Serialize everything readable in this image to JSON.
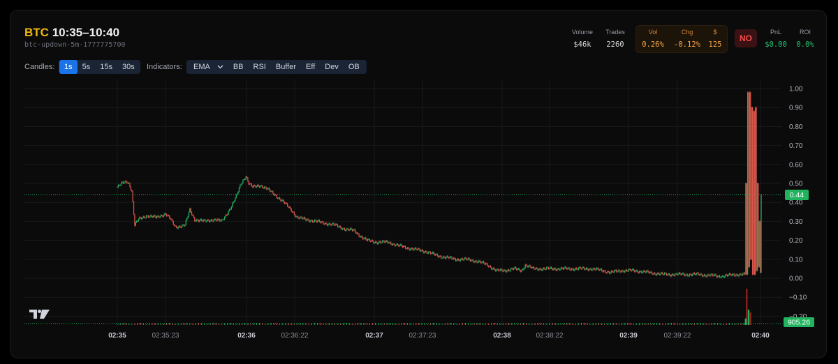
{
  "header": {
    "symbol": "BTC",
    "time_range": "10:35–10:40",
    "market_id": "btc-updown-5m-1777775700"
  },
  "stats": {
    "volume_label": "Volume",
    "volume_value": "$46k",
    "trades_label": "Trades",
    "trades_value": "2260",
    "vol_label": "Vol",
    "vol_value": "0.26%",
    "chg_label": "Chg",
    "chg_value": "-0.12%",
    "usd_label": "$",
    "usd_value": "125",
    "outcome_badge": "NO",
    "pnl_label": "PnL",
    "pnl_value": "$0.00",
    "roi_label": "ROI",
    "roi_value": "0.0%"
  },
  "toolbar": {
    "candles_label": "Candles:",
    "candle_intervals": [
      "1s",
      "5s",
      "15s",
      "30s"
    ],
    "active_interval": "1s",
    "indicators_label": "Indicators:",
    "ema_select": "EMA",
    "indicator_buttons": [
      "BB",
      "RSI",
      "Buffer",
      "Eff",
      "Dev",
      "OB"
    ]
  },
  "colors": {
    "up": "#22b35e",
    "down": "#e5534b",
    "accent": "#1a73e8",
    "symbol": "#f0b90b"
  },
  "icons": {
    "logo": "tradingview-logo-icon",
    "dropdown": "chevron-down-icon"
  },
  "chart_data": {
    "type": "candlestick",
    "y_ticks": [
      "1.00",
      "0.90",
      "0.80",
      "0.70",
      "0.60",
      "0.50",
      "0.40",
      "0.30",
      "0.20",
      "0.10",
      "0.00",
      "−0.10",
      "−0.20"
    ],
    "ylim": [
      -0.24,
      1.04
    ],
    "x_ticks": [
      "02:35",
      "02:35:23",
      "02:36",
      "02:36:22",
      "02:37",
      "02:37:23",
      "02:38",
      "02:38:22",
      "02:39",
      "02:39:22",
      "02:40"
    ],
    "x_ticks_bold": [
      "02:35",
      "02:36",
      "02:37",
      "02:38",
      "02:39",
      "02:40"
    ],
    "last_price_label": "0.44",
    "last_price": 0.44,
    "volume_label": "905.26",
    "price_path": [
      [
        0,
        0.48
      ],
      [
        5,
        0.5
      ],
      [
        10,
        0.51
      ],
      [
        12,
        0.5
      ],
      [
        15,
        0.46
      ],
      [
        18,
        0.28
      ],
      [
        22,
        0.31
      ],
      [
        30,
        0.33
      ],
      [
        40,
        0.32
      ],
      [
        50,
        0.34
      ],
      [
        55,
        0.31
      ],
      [
        60,
        0.27
      ],
      [
        70,
        0.28
      ],
      [
        75,
        0.36
      ],
      [
        80,
        0.31
      ],
      [
        90,
        0.3
      ],
      [
        100,
        0.31
      ],
      [
        108,
        0.3
      ],
      [
        112,
        0.33
      ],
      [
        118,
        0.38
      ],
      [
        123,
        0.43
      ],
      [
        128,
        0.5
      ],
      [
        133,
        0.54
      ],
      [
        136,
        0.5
      ],
      [
        140,
        0.48
      ],
      [
        148,
        0.49
      ],
      [
        155,
        0.47
      ],
      [
        163,
        0.44
      ],
      [
        170,
        0.41
      ],
      [
        176,
        0.38
      ],
      [
        180,
        0.36
      ],
      [
        186,
        0.32
      ],
      [
        195,
        0.31
      ],
      [
        205,
        0.3
      ],
      [
        215,
        0.29
      ],
      [
        225,
        0.28
      ],
      [
        235,
        0.26
      ],
      [
        245,
        0.25
      ],
      [
        252,
        0.22
      ],
      [
        258,
        0.2
      ],
      [
        268,
        0.19
      ],
      [
        280,
        0.19
      ],
      [
        292,
        0.17
      ],
      [
        300,
        0.16
      ],
      [
        310,
        0.15
      ],
      [
        320,
        0.14
      ],
      [
        330,
        0.12
      ],
      [
        340,
        0.11
      ],
      [
        350,
        0.1
      ],
      [
        360,
        0.1
      ],
      [
        372,
        0.09
      ],
      [
        383,
        0.07
      ],
      [
        392,
        0.04
      ],
      [
        400,
        0.04
      ],
      [
        410,
        0.05
      ],
      [
        418,
        0.04
      ],
      [
        422,
        0.07
      ],
      [
        430,
        0.05
      ],
      [
        445,
        0.05
      ],
      [
        460,
        0.05
      ],
      [
        475,
        0.05
      ],
      [
        490,
        0.05
      ],
      [
        503,
        0.04
      ],
      [
        510,
        0.03
      ],
      [
        520,
        0.04
      ],
      [
        535,
        0.04
      ],
      [
        550,
        0.03
      ],
      [
        565,
        0.02
      ],
      [
        580,
        0.02
      ],
      [
        600,
        0.02
      ],
      [
        625,
        0.01
      ],
      [
        640,
        0.02
      ],
      [
        650,
        0.02
      ]
    ],
    "spike_bars": [
      {
        "i": 650,
        "o": 0.02,
        "c": 0.5
      },
      {
        "i": 651,
        "o": 0.5,
        "c": 0.02
      },
      {
        "i": 652,
        "o": 0.02,
        "c": 0.98
      },
      {
        "i": 653,
        "o": 0.98,
        "c": 0.06
      },
      {
        "i": 654,
        "o": 0.06,
        "c": 0.98
      },
      {
        "i": 655,
        "o": 0.98,
        "c": 0.1
      },
      {
        "i": 656,
        "o": 0.1,
        "c": 0.9
      },
      {
        "i": 657,
        "o": 0.9,
        "c": 0.02
      },
      {
        "i": 658,
        "o": 0.02,
        "c": 0.88
      },
      {
        "i": 659,
        "o": 0.88,
        "c": 0.02
      },
      {
        "i": 660,
        "o": 0.02,
        "c": 0.9
      },
      {
        "i": 661,
        "o": 0.9,
        "c": 0.04
      },
      {
        "i": 662,
        "o": 0.04,
        "c": 0.5
      },
      {
        "i": 663,
        "o": 0.5,
        "c": 0.06
      },
      {
        "i": 664,
        "o": 0.06,
        "c": 0.3
      },
      {
        "i": 665,
        "o": 0.3,
        "c": 0.03
      },
      {
        "i": 666,
        "o": 0.03,
        "c": 0.44
      }
    ],
    "bar_count": 667,
    "big_volume_bars": [
      {
        "i": 651,
        "dir": "down",
        "v": 1.0
      },
      {
        "i": 653,
        "dir": "up",
        "v": 0.42
      },
      {
        "i": 655,
        "dir": "down",
        "v": 0.35
      },
      {
        "i": 650,
        "dir": "up",
        "v": 0.18
      }
    ]
  }
}
